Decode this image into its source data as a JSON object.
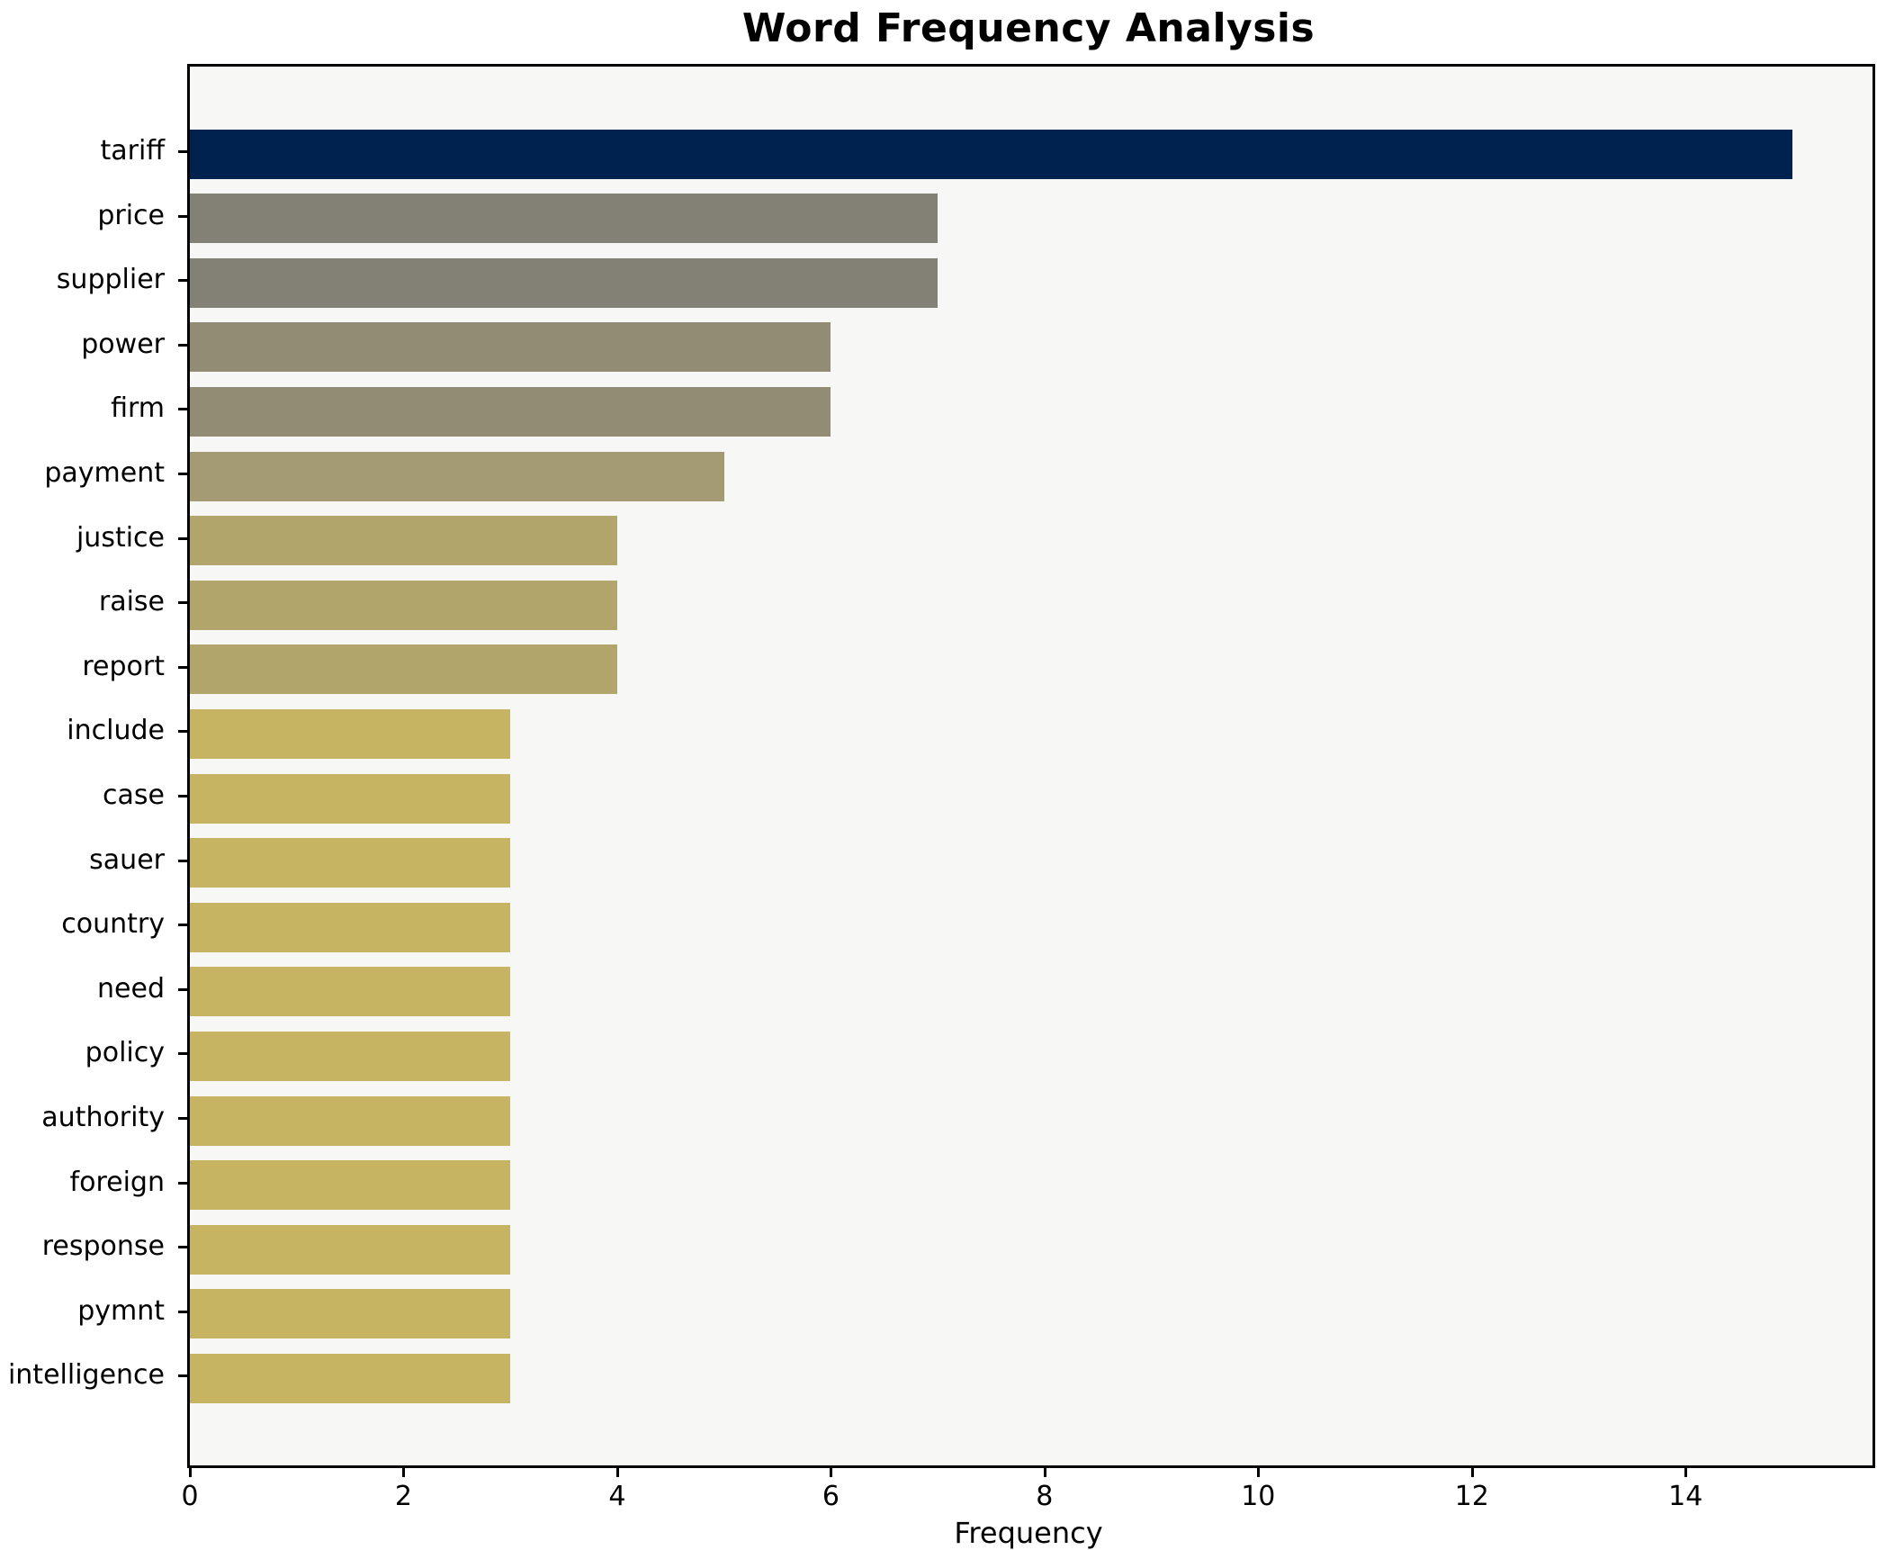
{
  "chart_data": {
    "type": "bar",
    "orientation": "horizontal",
    "title": "Word Frequency Analysis",
    "xlabel": "Frequency",
    "ylabel": "",
    "categories": [
      "tariff",
      "price",
      "supplier",
      "power",
      "firm",
      "payment",
      "justice",
      "raise",
      "report",
      "include",
      "case",
      "sauer",
      "country",
      "need",
      "policy",
      "authority",
      "foreign",
      "response",
      "pymnt",
      "intelligence"
    ],
    "values": [
      15,
      7,
      7,
      6,
      6,
      5,
      4,
      4,
      4,
      3,
      3,
      3,
      3,
      3,
      3,
      3,
      3,
      3,
      3,
      3
    ],
    "bar_colors": [
      "#00224e",
      "#838076",
      "#838076",
      "#938c74",
      "#938c74",
      "#a49a73",
      "#b2a56c",
      "#b2a56c",
      "#b2a56c",
      "#c6b462",
      "#c6b462",
      "#c6b462",
      "#c6b462",
      "#c6b462",
      "#c6b462",
      "#c6b462",
      "#c6b462",
      "#c6b462",
      "#c6b462",
      "#c6b462"
    ],
    "xlim": [
      0,
      15.75
    ],
    "xticks": [
      0,
      2,
      4,
      6,
      8,
      10,
      12,
      14
    ],
    "grid": false,
    "legend": false,
    "plot_background": "#f7f7f6",
    "figure_background": "#ffffff",
    "spine_color": "#000000"
  }
}
